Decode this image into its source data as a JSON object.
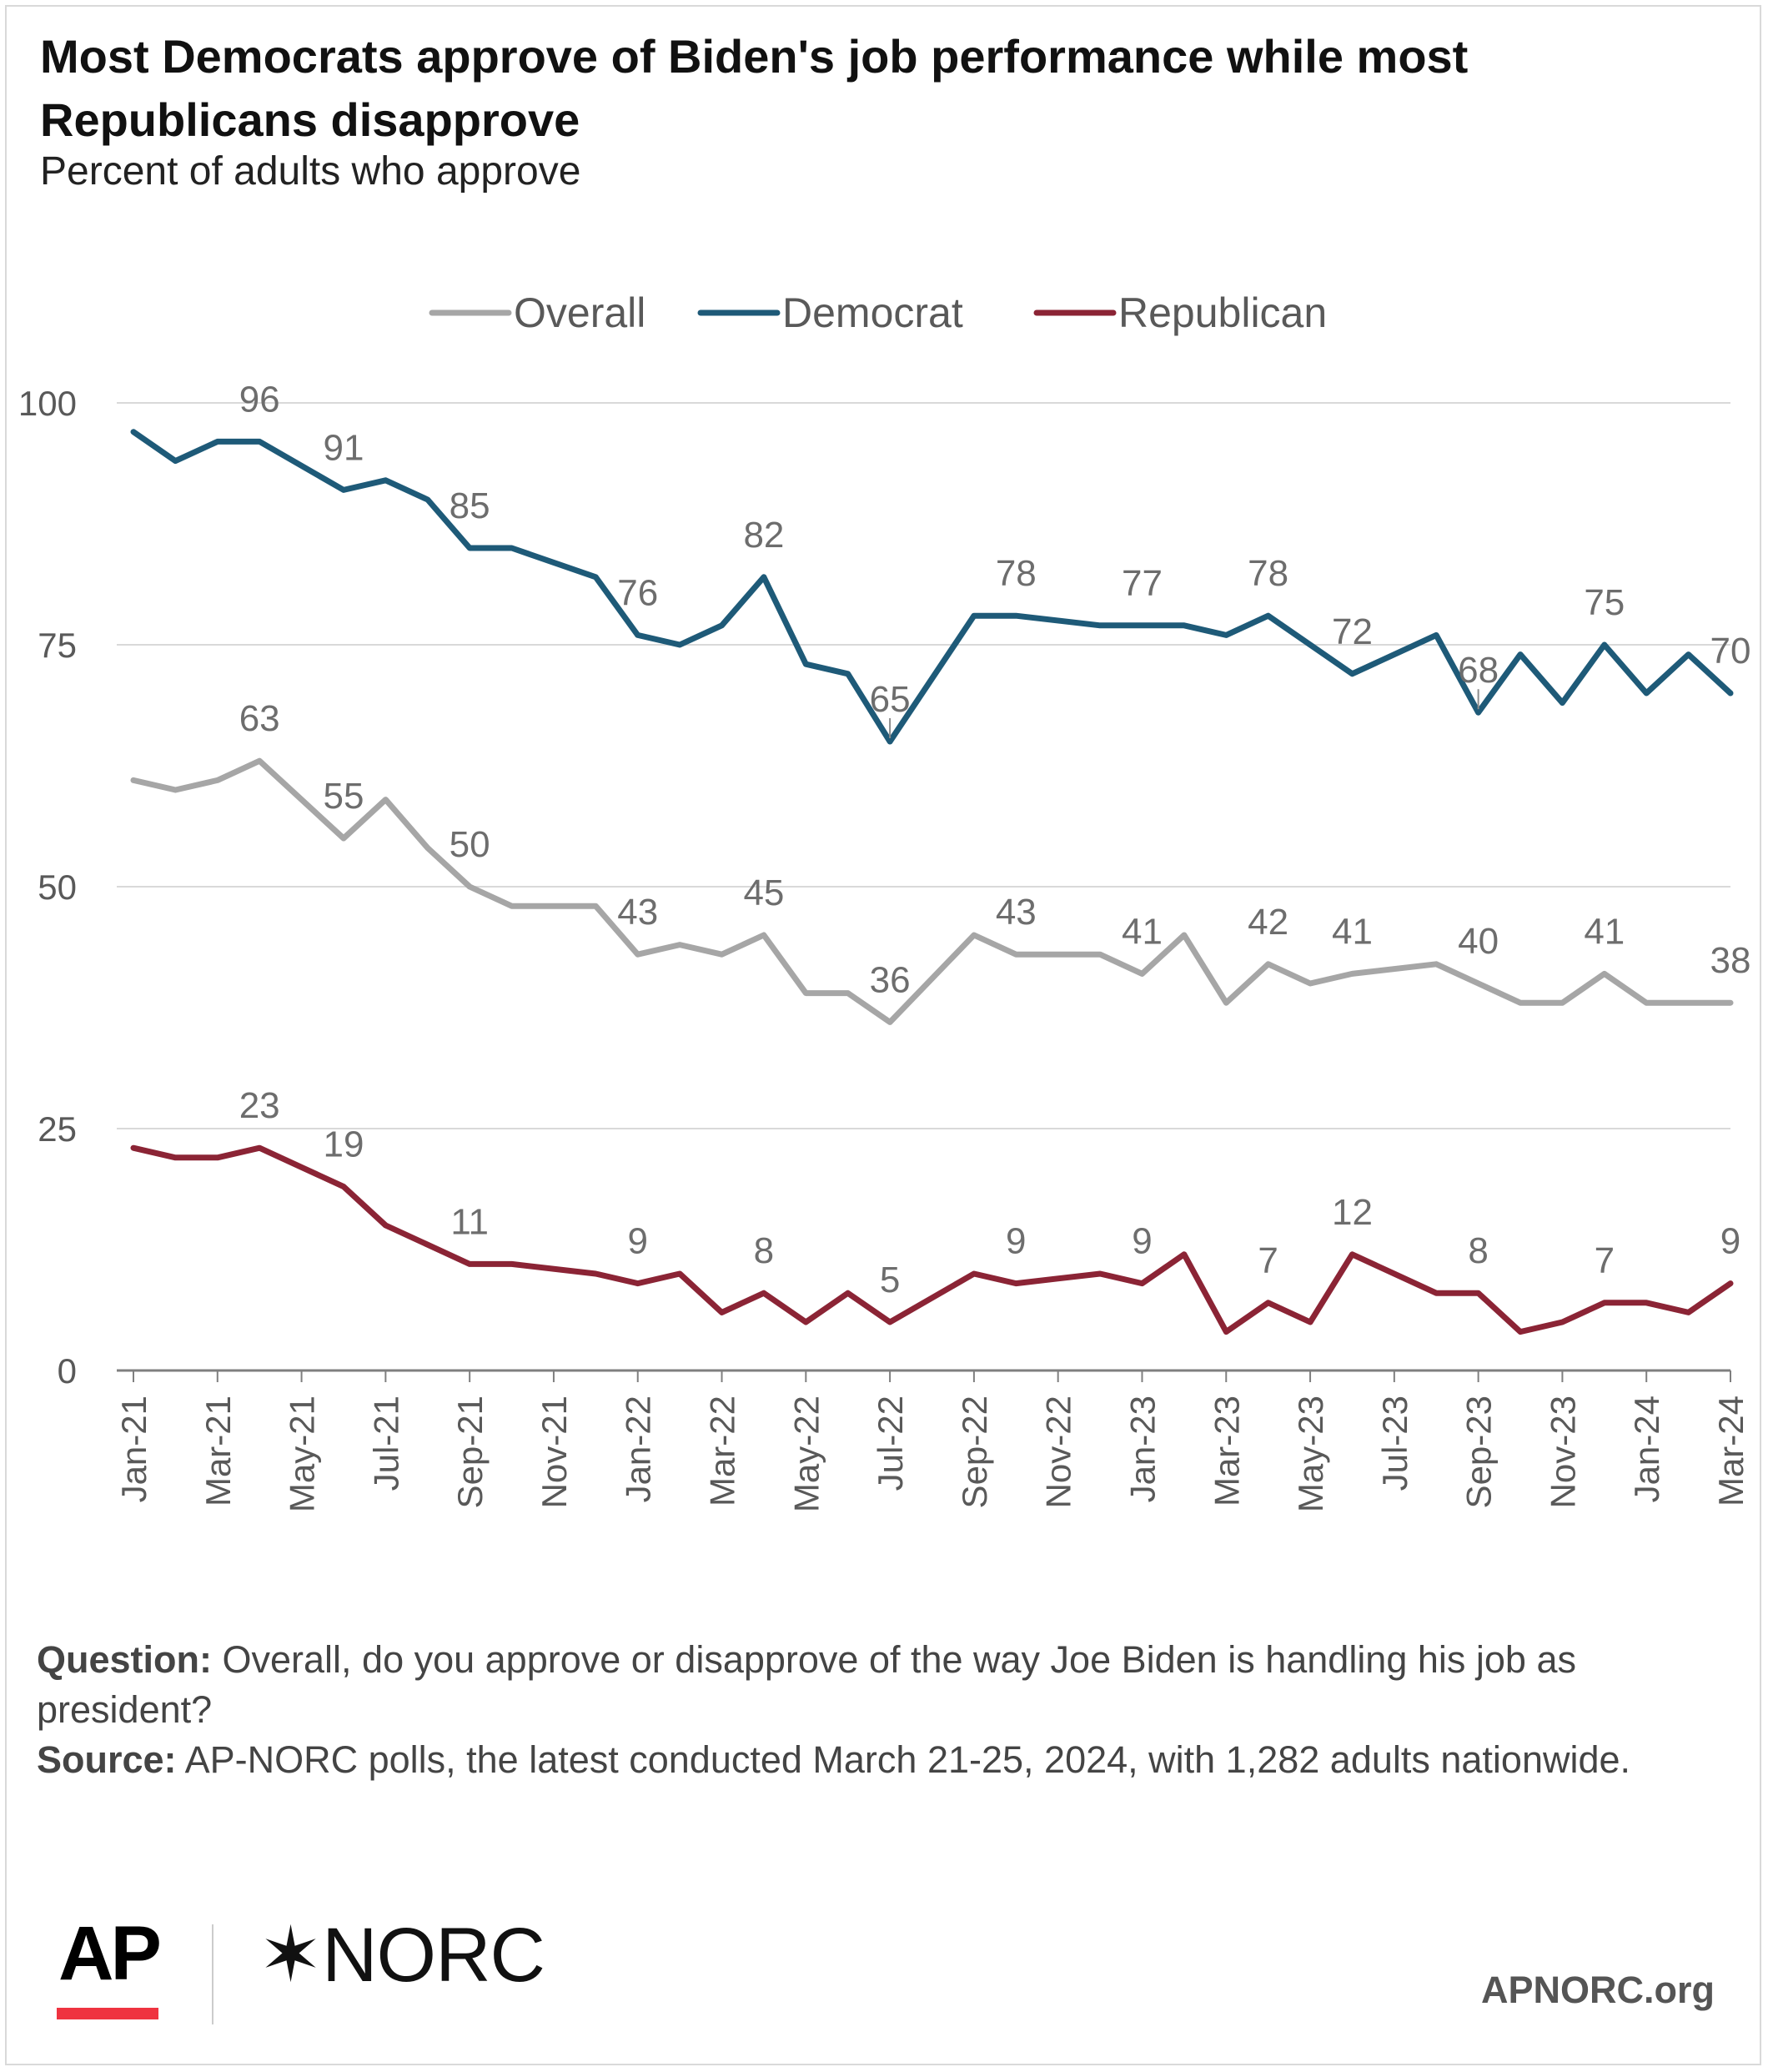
{
  "header": {
    "title": "Most Democrats approve of Biden's job performance while most Republicans disapprove",
    "subtitle": "Percent of adults who approve"
  },
  "chart_data": {
    "type": "line",
    "ylim": [
      0,
      100
    ],
    "yticks": [
      0,
      25,
      50,
      75,
      100
    ],
    "grid": true,
    "legend_position": "top-center",
    "xticks": [
      "Jan-21",
      "Mar-21",
      "May-21",
      "Jul-21",
      "Sep-21",
      "Nov-21",
      "Jan-22",
      "Mar-22",
      "May-22",
      "Jul-22",
      "Sep-22",
      "Nov-22",
      "Jan-23",
      "Mar-23",
      "May-23",
      "Jul-23",
      "Sep-23",
      "Nov-23",
      "Jan-24",
      "Mar-24"
    ],
    "series": [
      {
        "name": "Overall",
        "color": "#a6a6a6",
        "points": [
          [
            0,
            61
          ],
          [
            1,
            60
          ],
          [
            2,
            61
          ],
          [
            3,
            63
          ],
          [
            5,
            55
          ],
          [
            6,
            59
          ],
          [
            7,
            54
          ],
          [
            8,
            50
          ],
          [
            9,
            48
          ],
          [
            11,
            48
          ],
          [
            12,
            43
          ],
          [
            13,
            44
          ],
          [
            14,
            43
          ],
          [
            15,
            45
          ],
          [
            16,
            39
          ],
          [
            17,
            39
          ],
          [
            18,
            36
          ],
          [
            20,
            45
          ],
          [
            21,
            43
          ],
          [
            23,
            43
          ],
          [
            24,
            41
          ],
          [
            25,
            45
          ],
          [
            26,
            38
          ],
          [
            27,
            42
          ],
          [
            28,
            40
          ],
          [
            29,
            41
          ],
          [
            31,
            42
          ],
          [
            33,
            38
          ],
          [
            34,
            38
          ],
          [
            35,
            41
          ],
          [
            36,
            38
          ],
          [
            38,
            38
          ]
        ],
        "labels": [
          [
            3,
            63
          ],
          [
            5,
            55
          ],
          [
            8,
            50
          ],
          [
            12,
            43
          ],
          [
            15,
            45
          ],
          [
            18,
            36
          ],
          [
            21,
            43
          ],
          [
            24,
            41
          ],
          [
            27,
            42
          ],
          [
            29,
            41
          ],
          [
            32,
            40
          ],
          [
            35,
            41
          ],
          [
            38,
            38
          ]
        ]
      },
      {
        "name": "Democrat",
        "color": "#1e5a78",
        "points": [
          [
            0,
            97
          ],
          [
            1,
            94
          ],
          [
            2,
            96
          ],
          [
            3,
            96
          ],
          [
            5,
            91
          ],
          [
            6,
            92
          ],
          [
            7,
            90
          ],
          [
            8,
            85
          ],
          [
            9,
            85
          ],
          [
            11,
            82
          ],
          [
            12,
            76
          ],
          [
            13,
            75
          ],
          [
            14,
            77
          ],
          [
            15,
            82
          ],
          [
            16,
            73
          ],
          [
            17,
            72
          ],
          [
            18,
            65
          ],
          [
            20,
            78
          ],
          [
            21,
            78
          ],
          [
            23,
            77
          ],
          [
            24,
            77
          ],
          [
            25,
            77
          ],
          [
            26,
            76
          ],
          [
            27,
            78
          ],
          [
            29,
            72
          ],
          [
            31,
            76
          ],
          [
            32,
            68
          ],
          [
            33,
            74
          ],
          [
            34,
            69
          ],
          [
            35,
            75
          ],
          [
            36,
            70
          ],
          [
            37,
            74
          ],
          [
            38,
            70
          ]
        ],
        "labels": [
          [
            3,
            96
          ],
          [
            5,
            91
          ],
          [
            8,
            85
          ],
          [
            12,
            76
          ],
          [
            15,
            82
          ],
          [
            18,
            65
          ],
          [
            21,
            78
          ],
          [
            24,
            77
          ],
          [
            27,
            78
          ],
          [
            29,
            72
          ],
          [
            32,
            68
          ],
          [
            35,
            75
          ],
          [
            38,
            70
          ]
        ]
      },
      {
        "name": "Republican",
        "color": "#8b2435",
        "points": [
          [
            0,
            23
          ],
          [
            1,
            22
          ],
          [
            2,
            22
          ],
          [
            3,
            23
          ],
          [
            5,
            19
          ],
          [
            6,
            15
          ],
          [
            7,
            13
          ],
          [
            8,
            11
          ],
          [
            9,
            11
          ],
          [
            11,
            10
          ],
          [
            12,
            9
          ],
          [
            13,
            10
          ],
          [
            14,
            6
          ],
          [
            15,
            8
          ],
          [
            16,
            5
          ],
          [
            17,
            8
          ],
          [
            18,
            5
          ],
          [
            20,
            10
          ],
          [
            21,
            9
          ],
          [
            23,
            10
          ],
          [
            24,
            9
          ],
          [
            25,
            12
          ],
          [
            26,
            4
          ],
          [
            27,
            7
          ],
          [
            28,
            5
          ],
          [
            29,
            12
          ],
          [
            31,
            8
          ],
          [
            32,
            8
          ],
          [
            33,
            4
          ],
          [
            34,
            5
          ],
          [
            35,
            7
          ],
          [
            36,
            7
          ],
          [
            37,
            6
          ],
          [
            38,
            9
          ]
        ],
        "labels": [
          [
            3,
            23
          ],
          [
            5,
            19
          ],
          [
            8,
            11
          ],
          [
            12,
            9
          ],
          [
            15,
            8
          ],
          [
            18,
            5
          ],
          [
            21,
            9
          ],
          [
            24,
            9
          ],
          [
            27,
            7
          ],
          [
            29,
            12
          ],
          [
            32,
            8
          ],
          [
            35,
            7
          ],
          [
            38,
            9
          ]
        ]
      }
    ]
  },
  "notes": {
    "question_label": "Question:",
    "question_text": " Overall, do you approve or disapprove of the way Joe Biden is handling his job as president?",
    "source_label": "Source:",
    "source_text": " AP-NORC polls, the latest conducted March 21-25, 2024, with 1,282 adults nationwide."
  },
  "branding": {
    "ap_logo": "AP",
    "norc_logo": "✶NORC",
    "site": "APNORC.org",
    "ap_bar_color": "#ef3340"
  }
}
